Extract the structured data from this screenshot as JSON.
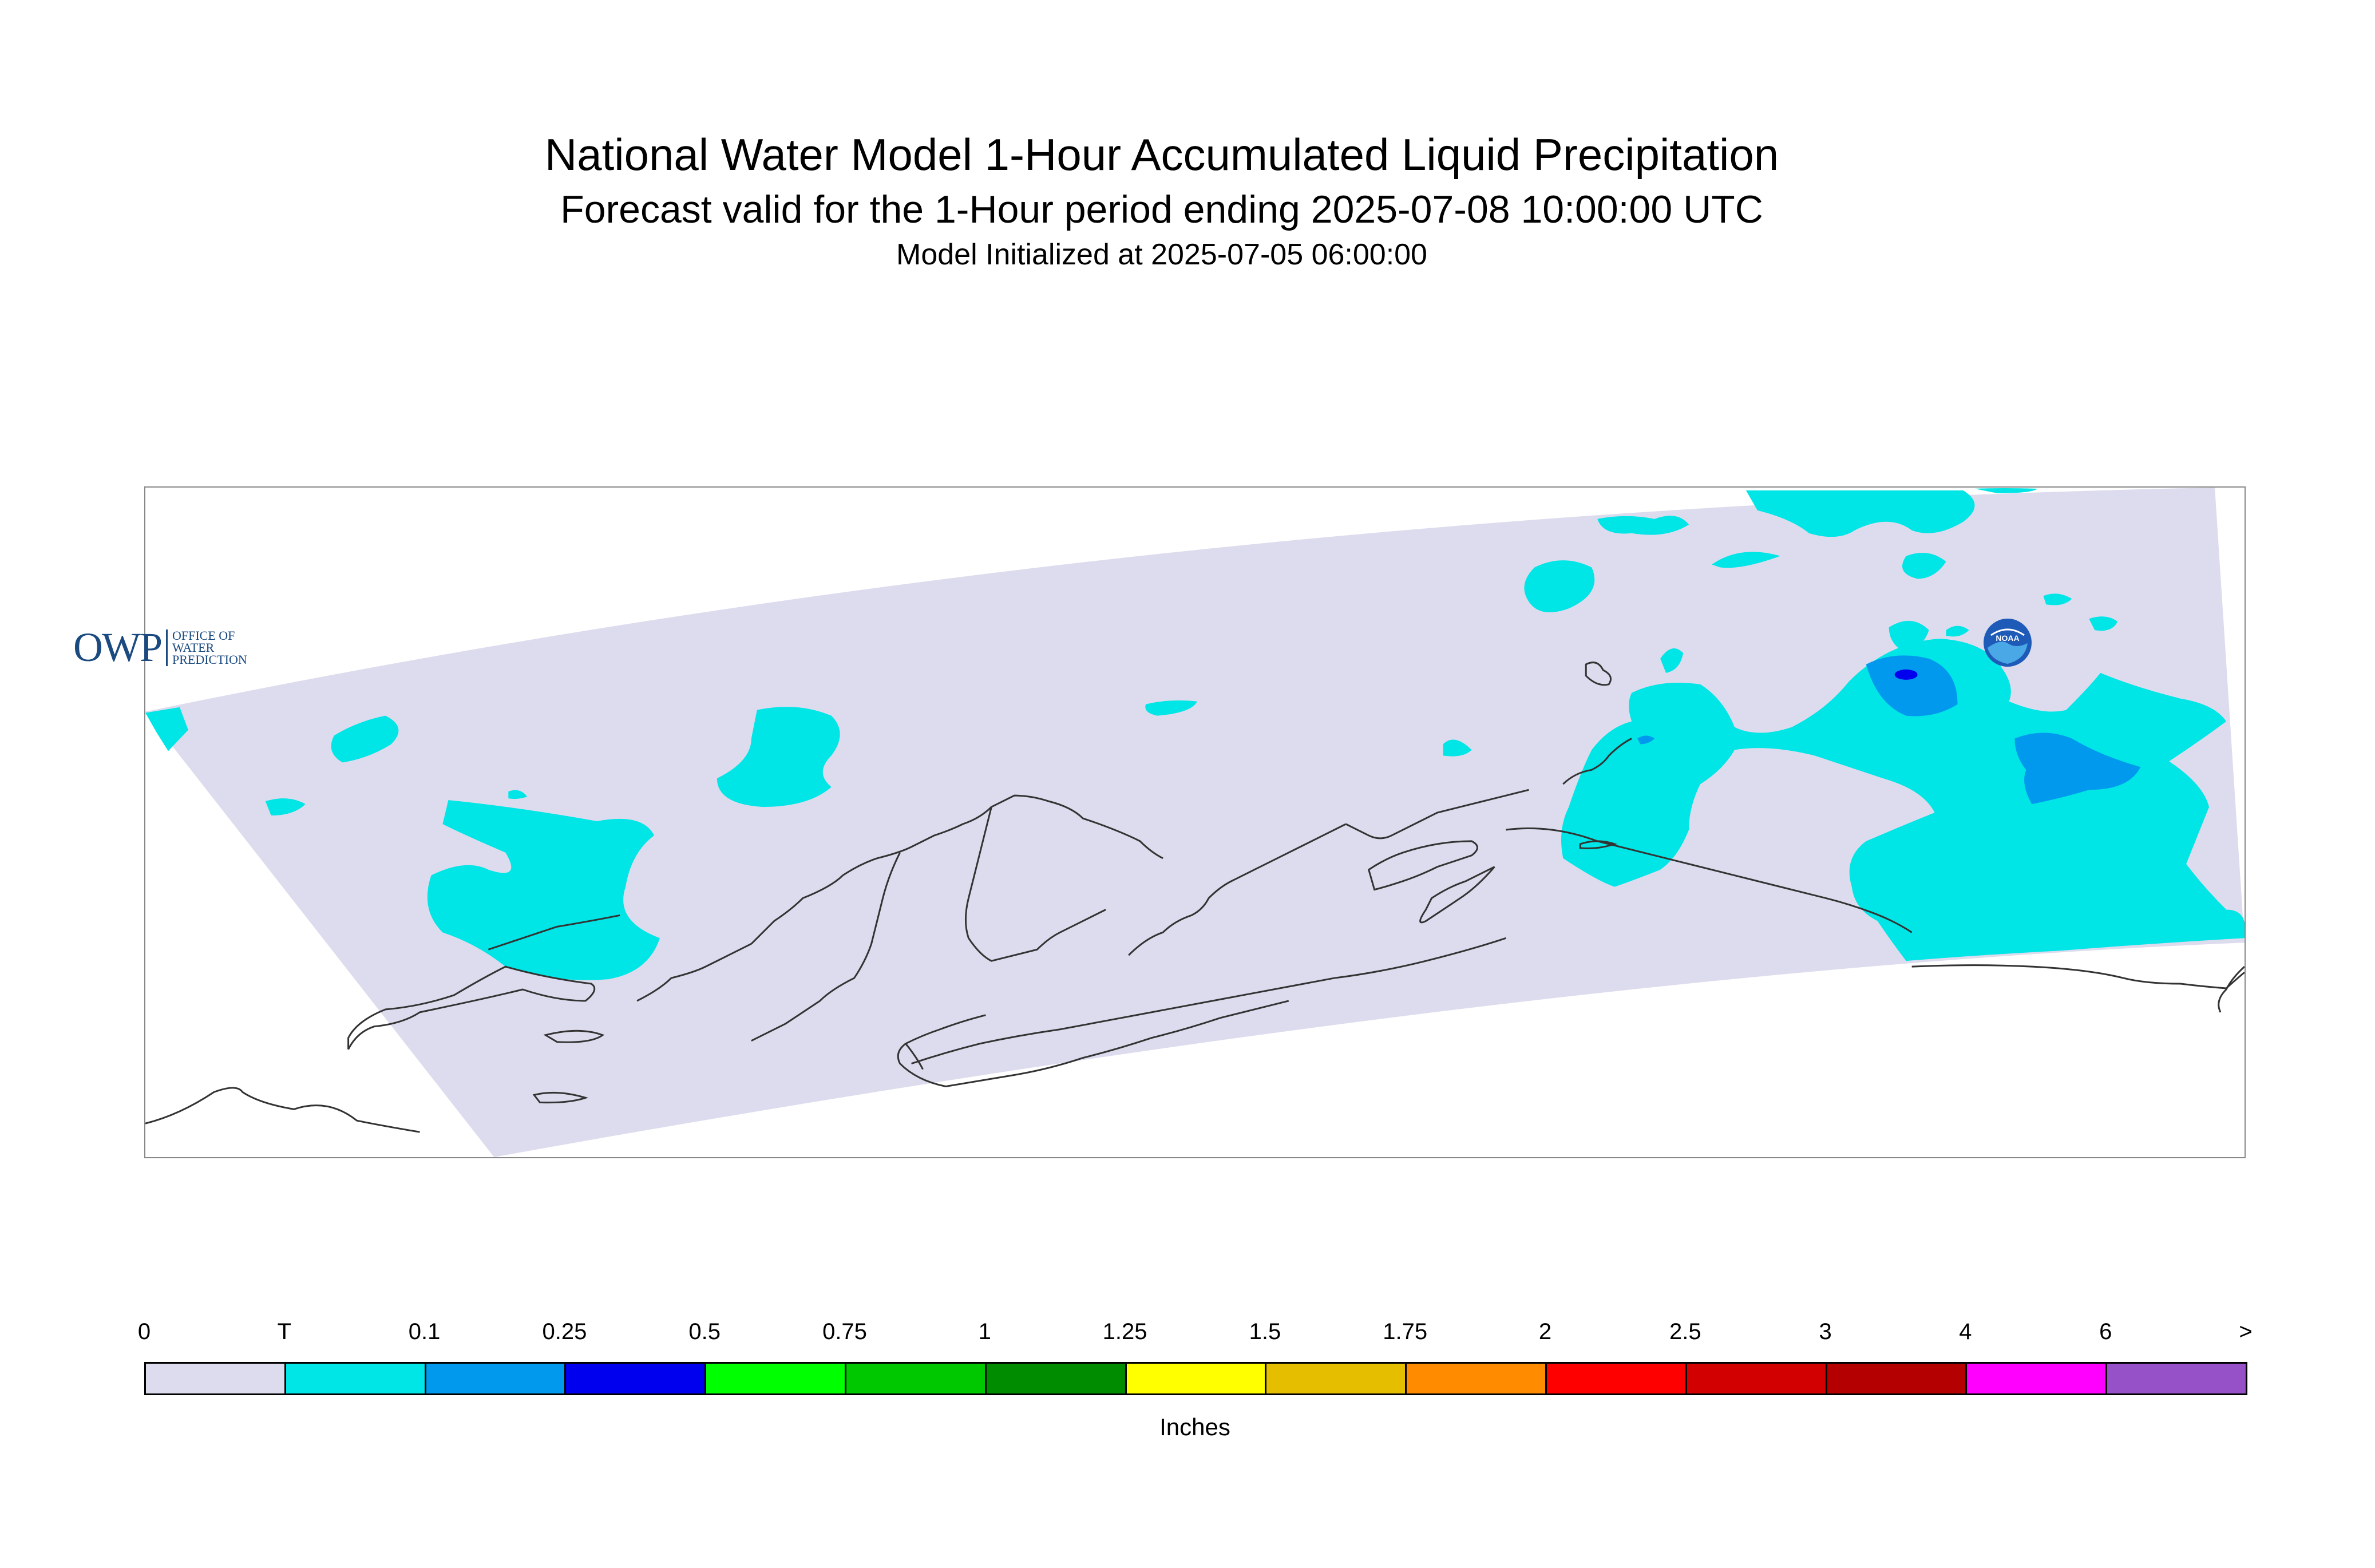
{
  "title": "National Water Model 1-Hour Accumulated Liquid Precipitation",
  "subtitle": "Forecast valid for the 1-Hour period ending 2025-07-08 10:00:00 UTC",
  "initialized": "Model Initialized at 2025-07-05 06:00:00",
  "colors": {
    "domain_fill": "#dcdcee",
    "coastline": "#333333",
    "trace": "#00e5e5",
    "light_blue": "#0099ee",
    "blue": "#0000ee"
  },
  "legend": {
    "units": "Inches",
    "ticks": [
      "0",
      "T",
      "0.1",
      "0.25",
      "0.5",
      "0.75",
      "1",
      "1.25",
      "1.5",
      "1.75",
      "2",
      "2.5",
      "3",
      "4",
      "6",
      ">"
    ],
    "colors": [
      "#dcdcee",
      "#00e5e5",
      "#0099ee",
      "#0000ee",
      "#00ff00",
      "#00c800",
      "#008c00",
      "#ffff00",
      "#e6be00",
      "#ff8c00",
      "#ff0000",
      "#d20000",
      "#b40000",
      "#ff00ff",
      "#9650c8"
    ]
  },
  "logos": {
    "owp_letters": "OWP",
    "owp_words": [
      "OFFICE OF",
      "WATER",
      "PREDICTION"
    ],
    "noaa": "NOAA"
  }
}
